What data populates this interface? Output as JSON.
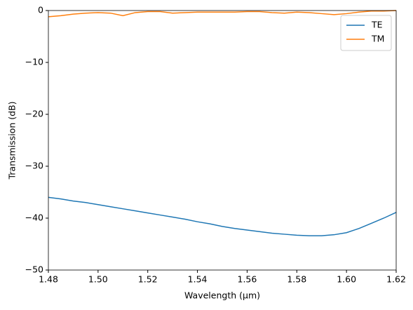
{
  "chart_data": {
    "type": "line",
    "xlabel": "Wavelength (μm)",
    "ylabel": "Transmission (dB)",
    "x": [
      1.48,
      1.485,
      1.49,
      1.495,
      1.5,
      1.505,
      1.51,
      1.515,
      1.52,
      1.525,
      1.53,
      1.535,
      1.54,
      1.545,
      1.55,
      1.555,
      1.56,
      1.565,
      1.57,
      1.575,
      1.58,
      1.585,
      1.59,
      1.595,
      1.6,
      1.605,
      1.61,
      1.615,
      1.62
    ],
    "series": [
      {
        "name": "TE",
        "color": "#1f77b4",
        "values": [
          -36.0,
          -36.3,
          -36.7,
          -37.0,
          -37.4,
          -37.8,
          -38.2,
          -38.6,
          -39.0,
          -39.4,
          -39.8,
          -40.2,
          -40.7,
          -41.1,
          -41.6,
          -42.0,
          -42.3,
          -42.6,
          -42.9,
          -43.1,
          -43.3,
          -43.4,
          -43.4,
          -43.2,
          -42.8,
          -42.0,
          -41.0,
          -40.0,
          -38.9
        ]
      },
      {
        "name": "TM",
        "color": "#ff7f0e",
        "values": [
          -1.2,
          -1.0,
          -0.7,
          -0.5,
          -0.4,
          -0.5,
          -1.0,
          -0.4,
          -0.2,
          -0.2,
          -0.5,
          -0.4,
          -0.3,
          -0.3,
          -0.3,
          -0.3,
          -0.2,
          -0.2,
          -0.4,
          -0.5,
          -0.3,
          -0.4,
          -0.6,
          -0.8,
          -0.6,
          -0.3,
          -0.1,
          -0.1,
          0.0
        ]
      }
    ],
    "xlim": [
      1.48,
      1.62
    ],
    "xticks": [
      1.48,
      {
        "value": 1.5,
        "label": "1.50"
      },
      1.52,
      1.54,
      1.56,
      1.58,
      {
        "value": 1.6,
        "label": "1.60"
      },
      1.62
    ],
    "ylim": [
      -50,
      0
    ],
    "yticks": [
      {
        "value": -50,
        "label": "−50"
      },
      {
        "value": -40,
        "label": "−40"
      },
      {
        "value": -30,
        "label": "−30"
      },
      {
        "value": -20,
        "label": "−20"
      },
      {
        "value": -10,
        "label": "−10"
      },
      0
    ],
    "legend": "upper right"
  }
}
